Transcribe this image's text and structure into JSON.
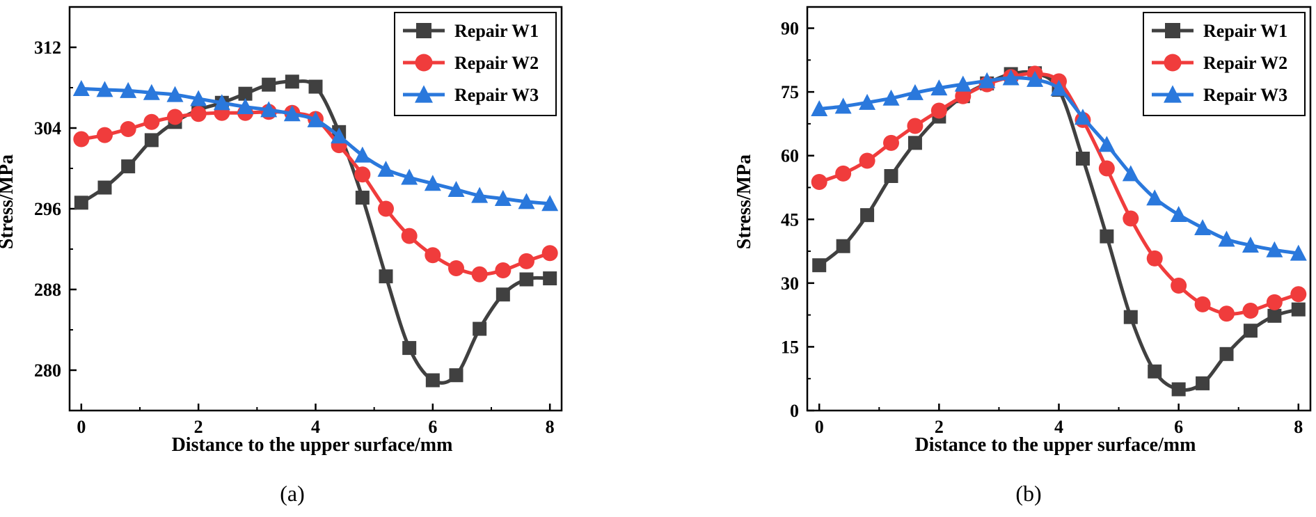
{
  "chart_data": [
    {
      "type": "line",
      "panel_label": "(a)",
      "xlabel": "Distance to the upper surface/mm",
      "ylabel": "Stress/MPa",
      "xlim": [
        -0.2,
        8.2
      ],
      "ylim": [
        276,
        316
      ],
      "xticks": [
        0,
        2,
        4,
        6,
        8
      ],
      "yticks": [
        280,
        288,
        296,
        304,
        312
      ],
      "legend_position": "top-right",
      "series": [
        {
          "name": "Repair W1",
          "color": "#404040",
          "marker": "square",
          "x": [
            0,
            0.4,
            0.8,
            1.2,
            1.6,
            2.0,
            2.4,
            2.8,
            3.2,
            3.6,
            4.0,
            4.4,
            4.8,
            5.2,
            5.6,
            6.0,
            6.4,
            6.8,
            7.2,
            7.6,
            8.0
          ],
          "y": [
            296.6,
            298.1,
            300.2,
            302.8,
            304.6,
            305.8,
            306.5,
            307.4,
            308.3,
            308.6,
            308.1,
            303.6,
            297.1,
            289.3,
            282.2,
            279.0,
            279.5,
            284.1,
            287.5,
            289.0,
            289.1
          ]
        },
        {
          "name": "Repair W2",
          "color": "#f03c3c",
          "marker": "circle",
          "x": [
            0,
            0.4,
            0.8,
            1.2,
            1.6,
            2.0,
            2.4,
            2.8,
            3.2,
            3.6,
            4.0,
            4.4,
            4.8,
            5.2,
            5.6,
            6.0,
            6.4,
            6.8,
            7.2,
            7.6,
            8.0
          ],
          "y": [
            302.9,
            303.3,
            303.9,
            304.6,
            305.1,
            305.4,
            305.5,
            305.5,
            305.6,
            305.5,
            304.9,
            302.3,
            299.4,
            296.0,
            293.3,
            291.4,
            290.1,
            289.5,
            289.9,
            290.8,
            291.6
          ]
        },
        {
          "name": "Repair W3",
          "color": "#2a78dc",
          "marker": "triangle",
          "x": [
            0,
            0.4,
            0.8,
            1.2,
            1.6,
            2.0,
            2.4,
            2.8,
            3.2,
            3.6,
            4.0,
            4.4,
            4.8,
            5.2,
            5.6,
            6.0,
            6.4,
            6.8,
            7.2,
            7.6,
            8.0
          ],
          "y": [
            307.9,
            307.8,
            307.7,
            307.5,
            307.3,
            306.9,
            306.5,
            306.1,
            305.8,
            305.4,
            304.8,
            303.2,
            301.3,
            299.9,
            299.1,
            298.5,
            297.9,
            297.3,
            297.0,
            296.7,
            296.5
          ]
        }
      ]
    },
    {
      "type": "line",
      "panel_label": "(b)",
      "xlabel": "Distance to the upper surface/mm",
      "ylabel": "Stress/MPa",
      "xlim": [
        -0.2,
        8.2
      ],
      "ylim": [
        0,
        95
      ],
      "xticks": [
        0,
        2,
        4,
        6,
        8
      ],
      "yticks": [
        0,
        15,
        30,
        45,
        60,
        75,
        90
      ],
      "legend_position": "top-right",
      "series": [
        {
          "name": "Repair W1",
          "color": "#404040",
          "marker": "square",
          "x": [
            0,
            0.4,
            0.8,
            1.2,
            1.6,
            2.0,
            2.4,
            2.8,
            3.2,
            3.6,
            4.0,
            4.4,
            4.8,
            5.2,
            5.6,
            6.0,
            6.4,
            6.8,
            7.2,
            7.6,
            8.0
          ],
          "y": [
            34.2,
            38.7,
            46.0,
            55.2,
            63.0,
            69.2,
            74.0,
            77.0,
            79.2,
            79.4,
            75.5,
            59.3,
            41.0,
            22.0,
            9.2,
            5.0,
            6.4,
            13.3,
            18.8,
            22.3,
            23.8
          ]
        },
        {
          "name": "Repair W2",
          "color": "#f03c3c",
          "marker": "circle",
          "x": [
            0,
            0.4,
            0.8,
            1.2,
            1.6,
            2.0,
            2.4,
            2.8,
            3.2,
            3.6,
            4.0,
            4.4,
            4.8,
            5.2,
            5.6,
            6.0,
            6.4,
            6.8,
            7.2,
            7.6,
            8.0
          ],
          "y": [
            53.8,
            55.8,
            58.8,
            63.0,
            67.0,
            70.6,
            74.0,
            76.8,
            78.5,
            79.3,
            77.5,
            68.4,
            57.0,
            45.2,
            35.8,
            29.4,
            25.0,
            22.8,
            23.5,
            25.5,
            27.4
          ]
        },
        {
          "name": "Repair W3",
          "color": "#2a78dc",
          "marker": "triangle",
          "x": [
            0,
            0.4,
            0.8,
            1.2,
            1.6,
            2.0,
            2.4,
            2.8,
            3.2,
            3.6,
            4.0,
            4.4,
            4.8,
            5.2,
            5.6,
            6.0,
            6.4,
            6.8,
            7.2,
            7.6,
            8.0
          ],
          "y": [
            71.0,
            71.6,
            72.5,
            73.5,
            74.8,
            75.9,
            76.8,
            77.6,
            78.3,
            77.9,
            75.8,
            69.0,
            62.6,
            55.7,
            50.0,
            46.1,
            43.0,
            40.3,
            38.9,
            37.8,
            37.0
          ]
        }
      ]
    }
  ]
}
